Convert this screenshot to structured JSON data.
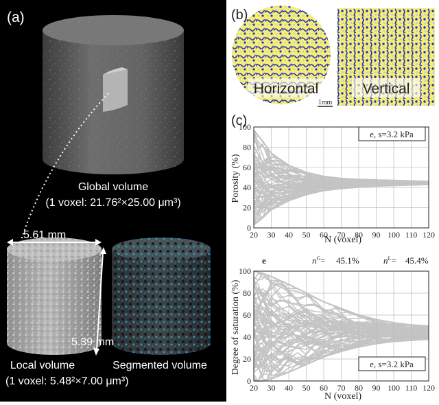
{
  "panel_a": {
    "label": "(a)",
    "global_title": "Global volume",
    "global_voxel": "(1 voxel: 21.76²×25.00 μm³)",
    "width_dim": "5.61 mm",
    "height_dim": "5.39 mm",
    "local_title": "Local volume",
    "local_voxel": "(1 voxel: 5.48²×7.00 μm³)",
    "segmented_title": "Segmented volume",
    "colors": {
      "background": "#000000",
      "segmented_pore": "#2aa3d8"
    }
  },
  "panel_b": {
    "label": "(b)",
    "left_caption": "Horizontal",
    "right_caption": "Vertical",
    "scale_bar": "1mm",
    "colors": {
      "solid": "#f4ef72",
      "water": "#2a2fc8",
      "air": "#e8e8f0"
    }
  },
  "panel_c": {
    "label": "(c)"
  },
  "chart_data": [
    {
      "type": "line",
      "title": "",
      "legend_box": "e, s=3.2 kPa",
      "xlabel": "N (voxel)",
      "ylabel": "Porosity (%)",
      "xlim": [
        20,
        120
      ],
      "ylim": [
        0,
        100
      ],
      "xticks": [
        20,
        30,
        40,
        50,
        60,
        70,
        80,
        90,
        100,
        110,
        120
      ],
      "yticks": [
        0,
        20,
        40,
        60,
        80,
        100
      ],
      "grid": true,
      "line_color": "#c4c4c4",
      "envelope": {
        "x": [
          20,
          25,
          30,
          40,
          50,
          60,
          70,
          80,
          90,
          100,
          110,
          120
        ],
        "upper": [
          97,
          86,
          74,
          62,
          55,
          51,
          49,
          48,
          47.5,
          47,
          46.5,
          46
        ],
        "lower": [
          3,
          10,
          18,
          27,
          33,
          37,
          39,
          40.5,
          41.5,
          42,
          42.5,
          43
        ]
      },
      "center": 45
    },
    {
      "type": "line",
      "title": "",
      "header_label": "e",
      "annotation_nG": "45.1%",
      "annotation_nL": "45.4%",
      "legend_box": "e, s=3.2 kPa",
      "xlabel": "N (voxel)",
      "ylabel": "Degree of saturation (%)",
      "xlim": [
        20,
        120
      ],
      "ylim": [
        0,
        100
      ],
      "xticks": [
        20,
        30,
        40,
        50,
        60,
        70,
        80,
        90,
        100,
        110,
        120
      ],
      "yticks": [
        0,
        20,
        40,
        60,
        80,
        100
      ],
      "grid": true,
      "line_color": "#c4c4c4",
      "envelope": {
        "x": [
          20,
          25,
          30,
          40,
          50,
          60,
          70,
          80,
          90,
          100,
          110,
          120
        ],
        "upper": [
          100,
          98,
          95,
          88,
          80,
          72,
          66,
          60,
          56,
          53,
          51,
          50
        ],
        "lower": [
          0,
          0,
          2,
          8,
          15,
          22,
          27,
          31,
          34,
          36,
          37,
          38
        ]
      },
      "center": 44
    }
  ]
}
